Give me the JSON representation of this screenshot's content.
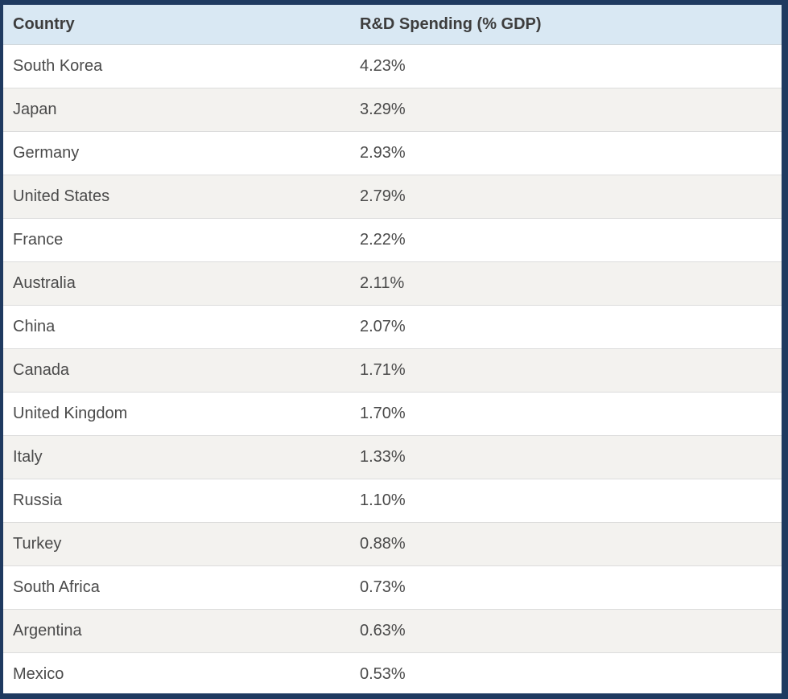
{
  "colors": {
    "frame_border": "#1f3a60",
    "header_background": "#d9e8f3",
    "header_text": "#3d3d3d",
    "row_text": "#4a4a4a",
    "row_stripe": "#f3f2ef",
    "row_divider": "#dcdcdc"
  },
  "table": {
    "columns": [
      {
        "key": "country",
        "label": "Country"
      },
      {
        "key": "value",
        "label": "R&D Spending (% GDP)"
      }
    ],
    "rows": [
      {
        "country": "South Korea",
        "value": "4.23%"
      },
      {
        "country": "Japan",
        "value": "3.29%"
      },
      {
        "country": "Germany",
        "value": "2.93%"
      },
      {
        "country": "United States",
        "value": "2.79%"
      },
      {
        "country": "France",
        "value": "2.22%"
      },
      {
        "country": "Australia",
        "value": "2.11%"
      },
      {
        "country": "China",
        "value": "2.07%"
      },
      {
        "country": "Canada",
        "value": "1.71%"
      },
      {
        "country": "United Kingdom",
        "value": "1.70%"
      },
      {
        "country": "Italy",
        "value": "1.33%"
      },
      {
        "country": "Russia",
        "value": "1.10%"
      },
      {
        "country": "Turkey",
        "value": "0.88%"
      },
      {
        "country": "South Africa",
        "value": "0.73%"
      },
      {
        "country": "Argentina",
        "value": "0.63%"
      },
      {
        "country": "Mexico",
        "value": "0.53%"
      }
    ]
  },
  "chart_data": {
    "type": "table",
    "title": "",
    "columns": [
      "Country",
      "R&D Spending (% GDP)"
    ],
    "categories": [
      "South Korea",
      "Japan",
      "Germany",
      "United States",
      "France",
      "Australia",
      "China",
      "Canada",
      "United Kingdom",
      "Italy",
      "Russia",
      "Turkey",
      "South Africa",
      "Argentina",
      "Mexico"
    ],
    "values": [
      4.23,
      3.29,
      2.93,
      2.79,
      2.22,
      2.11,
      2.07,
      1.71,
      1.7,
      1.33,
      1.1,
      0.88,
      0.73,
      0.63,
      0.53
    ],
    "value_unit": "% GDP"
  }
}
